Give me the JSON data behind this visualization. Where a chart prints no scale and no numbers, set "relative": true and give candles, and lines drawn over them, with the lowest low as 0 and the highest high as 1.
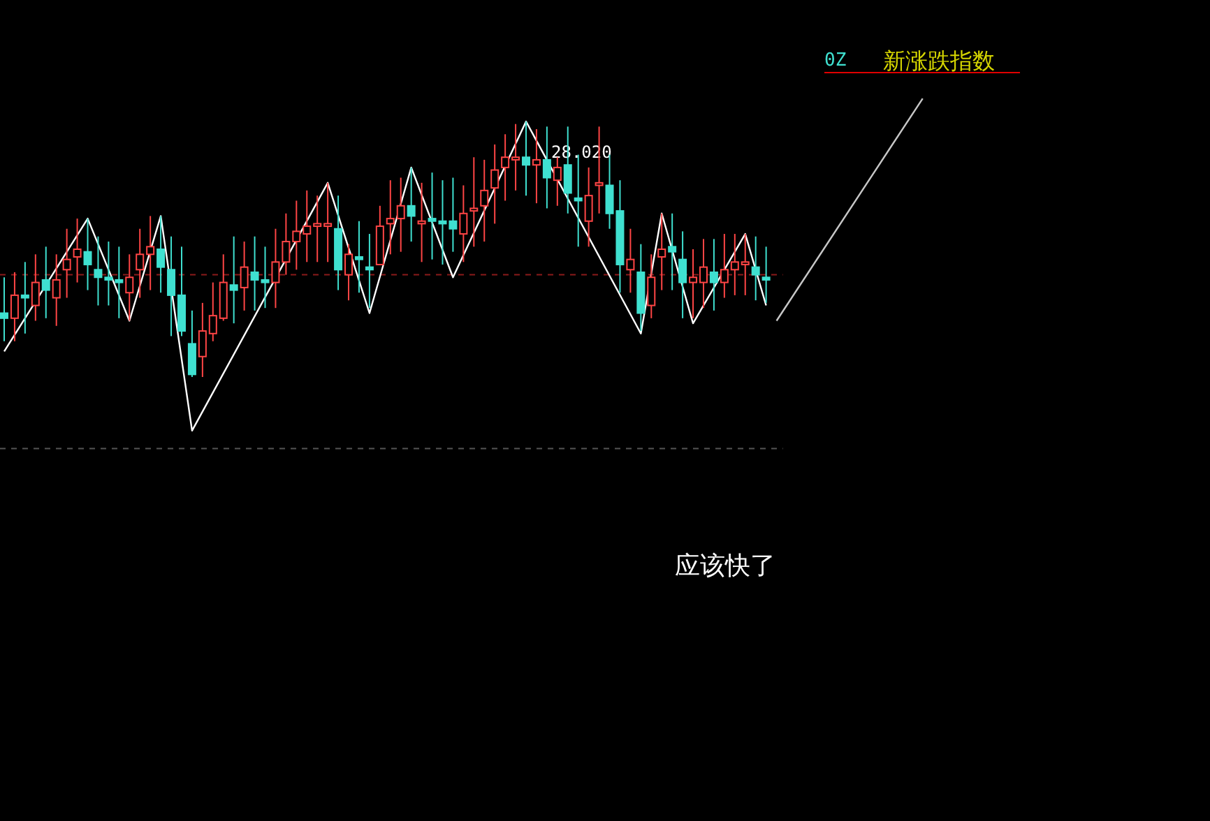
{
  "chart_data": {
    "type": "candlestick",
    "relative": true,
    "title": "新涨跌指数",
    "subtitle": "0Z",
    "categories": [
      null,
      null,
      null,
      null,
      null,
      null,
      null,
      null,
      null,
      null,
      null,
      null,
      null,
      null,
      null,
      null,
      null,
      null,
      null,
      null,
      null,
      null,
      null,
      null,
      null,
      null,
      null,
      null,
      null,
      null,
      null,
      null,
      null,
      null,
      null,
      null,
      null,
      null,
      null,
      null,
      null,
      null,
      null,
      null,
      null,
      null,
      null,
      null,
      null,
      null,
      null,
      null,
      null,
      null,
      null,
      null,
      null,
      null,
      null,
      null,
      null,
      null,
      null,
      null,
      null,
      null,
      null,
      null,
      null,
      null,
      null,
      null,
      null,
      null,
      null,
      null,
      null,
      null,
      null,
      null,
      null,
      null,
      null,
      null,
      null,
      null,
      null,
      null,
      null
    ],
    "ohlc": [
      [
        0.25,
        0.39,
        0.14,
        0.23
      ],
      [
        0.23,
        0.41,
        0.14,
        0.32
      ],
      [
        0.32,
        0.45,
        0.17,
        0.31
      ],
      [
        0.28,
        0.48,
        0.22,
        0.37
      ],
      [
        0.38,
        0.51,
        0.23,
        0.34
      ],
      [
        0.31,
        0.48,
        0.2,
        0.38
      ],
      [
        0.42,
        0.58,
        0.31,
        0.46
      ],
      [
        0.47,
        0.62,
        0.37,
        0.5
      ],
      [
        0.49,
        0.62,
        0.34,
        0.44
      ],
      [
        0.42,
        0.55,
        0.28,
        0.39
      ],
      [
        0.39,
        0.53,
        0.28,
        0.38
      ],
      [
        0.38,
        0.51,
        0.23,
        0.37
      ],
      [
        0.33,
        0.48,
        0.22,
        0.39
      ],
      [
        0.42,
        0.58,
        0.31,
        0.48
      ],
      [
        0.48,
        0.63,
        0.34,
        0.51
      ],
      [
        0.5,
        0.63,
        0.33,
        0.43
      ],
      [
        0.42,
        0.55,
        0.16,
        0.32
      ],
      [
        0.32,
        0.51,
        0.16,
        0.18
      ],
      [
        0.13,
        0.26,
        0.0,
        0.01
      ],
      [
        0.08,
        0.29,
        0.0,
        0.18
      ],
      [
        0.17,
        0.37,
        0.14,
        0.24
      ],
      [
        0.23,
        0.48,
        0.22,
        0.37
      ],
      [
        0.36,
        0.55,
        0.21,
        0.34
      ],
      [
        0.35,
        0.53,
        0.26,
        0.43
      ],
      [
        0.41,
        0.55,
        0.26,
        0.38
      ],
      [
        0.38,
        0.51,
        0.27,
        0.37
      ],
      [
        0.37,
        0.58,
        0.27,
        0.45
      ],
      [
        0.45,
        0.64,
        0.4,
        0.53
      ],
      [
        0.53,
        0.69,
        0.42,
        0.57
      ],
      [
        0.56,
        0.73,
        0.45,
        0.59
      ],
      [
        0.59,
        0.71,
        0.45,
        0.6
      ],
      [
        0.59,
        0.76,
        0.45,
        0.6
      ],
      [
        0.58,
        0.71,
        0.34,
        0.42
      ],
      [
        0.4,
        0.52,
        0.3,
        0.48
      ],
      [
        0.47,
        0.61,
        0.33,
        0.46
      ],
      [
        0.43,
        0.56,
        0.27,
        0.42
      ],
      [
        0.44,
        0.67,
        0.44,
        0.59
      ],
      [
        0.6,
        0.77,
        0.48,
        0.62
      ],
      [
        0.62,
        0.78,
        0.49,
        0.67
      ],
      [
        0.67,
        0.82,
        0.53,
        0.63
      ],
      [
        0.6,
        0.76,
        0.45,
        0.61
      ],
      [
        0.62,
        0.8,
        0.46,
        0.61
      ],
      [
        0.61,
        0.77,
        0.44,
        0.6
      ],
      [
        0.61,
        0.78,
        0.49,
        0.58
      ],
      [
        0.56,
        0.75,
        0.45,
        0.64
      ],
      [
        0.65,
        0.86,
        0.51,
        0.66
      ],
      [
        0.67,
        0.85,
        0.53,
        0.73
      ],
      [
        0.74,
        0.91,
        0.6,
        0.81
      ],
      [
        0.82,
        0.95,
        0.69,
        0.86
      ],
      [
        0.85,
        0.99,
        0.73,
        0.86
      ],
      [
        0.86,
        1.0,
        0.71,
        0.83
      ],
      [
        0.83,
        0.97,
        0.68,
        0.85
      ],
      [
        0.85,
        0.98,
        0.66,
        0.78
      ],
      [
        0.77,
        0.86,
        0.67,
        0.82
      ],
      [
        0.83,
        0.98,
        0.64,
        0.72
      ],
      [
        0.7,
        0.87,
        0.51,
        0.69
      ],
      [
        0.61,
        0.82,
        0.51,
        0.71
      ],
      [
        0.75,
        0.98,
        0.64,
        0.76
      ],
      [
        0.75,
        0.87,
        0.58,
        0.64
      ],
      [
        0.65,
        0.77,
        0.33,
        0.44
      ],
      [
        0.42,
        0.58,
        0.33,
        0.46
      ],
      [
        0.41,
        0.52,
        0.18,
        0.25
      ],
      [
        0.28,
        0.48,
        0.23,
        0.39
      ],
      [
        0.47,
        0.64,
        0.34,
        0.5
      ],
      [
        0.51,
        0.64,
        0.34,
        0.49
      ],
      [
        0.46,
        0.57,
        0.23,
        0.37
      ],
      [
        0.37,
        0.5,
        0.23,
        0.39
      ],
      [
        0.37,
        0.54,
        0.27,
        0.43
      ],
      [
        0.41,
        0.54,
        0.26,
        0.37
      ],
      [
        0.37,
        0.56,
        0.31,
        0.42
      ],
      [
        0.42,
        0.56,
        0.32,
        0.45
      ],
      [
        0.44,
        0.56,
        0.32,
        0.45
      ],
      [
        0.43,
        0.55,
        0.3,
        0.4
      ],
      [
        0.39,
        0.51,
        0.29,
        0.38
      ],
      null,
      null,
      null,
      null,
      null,
      null,
      null,
      null,
      null,
      null,
      null,
      null,
      null,
      null,
      null
    ],
    "series": [
      {
        "type": "line",
        "color": "#ffffff",
        "values": [
          0.1,
          null,
          null,
          null,
          null,
          null,
          null,
          null,
          0.62,
          null,
          null,
          null,
          0.22,
          null,
          null,
          0.63,
          null,
          null,
          -0.21,
          null,
          null,
          null,
          null,
          null,
          null,
          null,
          null,
          null,
          null,
          null,
          null,
          0.76,
          null,
          null,
          null,
          0.25,
          null,
          null,
          null,
          0.82,
          null,
          null,
          null,
          0.39,
          null,
          null,
          null,
          null,
          null,
          null,
          1.0,
          null,
          null,
          null,
          null,
          null,
          null,
          null,
          null,
          null,
          null,
          0.17,
          null,
          0.64,
          null,
          null,
          0.21,
          null,
          null,
          null,
          null,
          0.56,
          null,
          0.28,
          null,
          null,
          null,
          null,
          null,
          null,
          null,
          null,
          null,
          null,
          null,
          null,
          null,
          null,
          null
        ]
      },
      {
        "type": "line",
        "color": "#c8c8c8",
        "values": [
          null,
          null,
          null,
          null,
          null,
          null,
          null,
          null,
          null,
          null,
          null,
          null,
          null,
          null,
          null,
          null,
          null,
          null,
          null,
          null,
          null,
          null,
          null,
          null,
          null,
          null,
          null,
          null,
          null,
          null,
          null,
          null,
          null,
          null,
          null,
          null,
          null,
          null,
          null,
          null,
          null,
          null,
          null,
          null,
          null,
          null,
          null,
          null,
          null,
          null,
          null,
          null,
          null,
          null,
          null,
          null,
          null,
          null,
          null,
          null,
          null,
          null,
          null,
          null,
          null,
          null,
          null,
          null,
          null,
          null,
          null,
          null,
          null,
          null,
          0.22,
          null,
          null,
          null,
          null,
          null,
          null,
          null,
          null,
          null,
          null,
          null,
          null,
          null,
          1.09
        ]
      }
    ],
    "ref_lines": [
      {
        "axis": "y",
        "value": 0.4,
        "color": "#8b1a1a",
        "line_style": "dashed"
      },
      {
        "axis": "y",
        "value": -0.28,
        "color": "#555555",
        "line_style": "dashed"
      }
    ],
    "annotations": [
      "28.020",
      "应该快了"
    ]
  }
}
